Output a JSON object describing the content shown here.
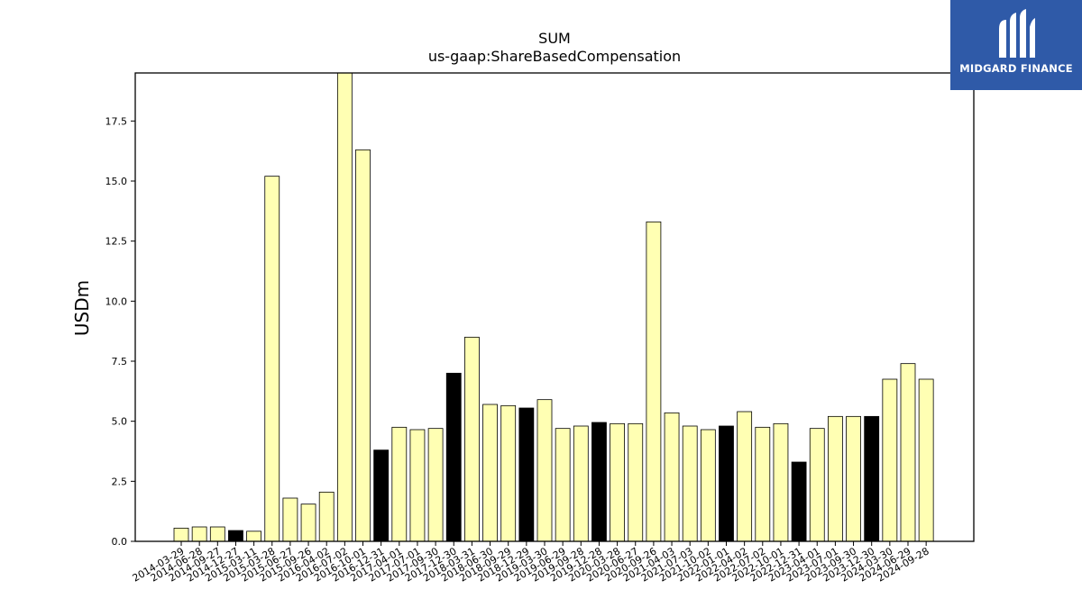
{
  "brand": {
    "name": "MIDGARD FINANCE",
    "logo_icon": "midgard-logo-icon",
    "background": "#2f5aa8"
  },
  "chart_data": {
    "type": "bar",
    "title": "SUM",
    "subtitle": "us-gaap:ShareBasedCompensation",
    "xlabel": "",
    "ylabel": "USDm",
    "ylim": [
      0,
      19.5
    ],
    "yticks": [
      "0.0",
      "2.5",
      "5.0",
      "7.5",
      "10.0",
      "12.5",
      "15.0",
      "17.5"
    ],
    "grid": false,
    "legend": "none",
    "colors": {
      "regular": "#ffffb3",
      "highlight": "#000000",
      "edge": "#000000"
    },
    "categories": [
      "2014-03-29",
      "2014-06-28",
      "2014-09-27",
      "2014-12-27",
      "2015-03-11",
      "2015-03-28",
      "2015-06-27",
      "2015-09-26",
      "2016-04-02",
      "2016-07-02",
      "2016-10-01",
      "2016-12-31",
      "2017-04-01",
      "2017-07-01",
      "2017-09-30",
      "2017-12-30",
      "2018-03-31",
      "2018-06-30",
      "2018-09-29",
      "2018-12-29",
      "2019-03-30",
      "2019-06-29",
      "2019-09-28",
      "2019-12-28",
      "2020-03-28",
      "2020-06-27",
      "2020-09-26",
      "2021-04-03",
      "2021-07-03",
      "2021-10-02",
      "2022-01-01",
      "2022-04-02",
      "2022-07-02",
      "2022-10-01",
      "2022-12-31",
      "2023-04-01",
      "2023-07-01",
      "2023-09-30",
      "2023-12-30",
      "2024-03-30",
      "2024-06-29",
      "2024-09-28"
    ],
    "values": [
      0.55,
      0.6,
      0.6,
      0.45,
      0.42,
      15.2,
      1.8,
      1.55,
      2.05,
      19.5,
      16.3,
      3.8,
      4.75,
      4.65,
      4.7,
      7.0,
      8.5,
      5.7,
      5.65,
      5.55,
      5.9,
      4.7,
      4.8,
      4.95,
      4.9,
      4.9,
      13.3,
      5.35,
      4.8,
      4.65,
      4.8,
      5.4,
      4.75,
      4.9,
      3.3,
      4.7,
      5.2,
      5.2,
      5.2,
      6.75,
      7.4,
      6.75
    ],
    "highlighted": [
      false,
      false,
      false,
      true,
      false,
      false,
      false,
      false,
      false,
      false,
      false,
      true,
      false,
      false,
      false,
      true,
      false,
      false,
      false,
      true,
      false,
      false,
      false,
      true,
      false,
      false,
      false,
      false,
      false,
      false,
      true,
      false,
      false,
      false,
      true,
      false,
      false,
      false,
      true,
      false,
      false,
      false
    ]
  }
}
